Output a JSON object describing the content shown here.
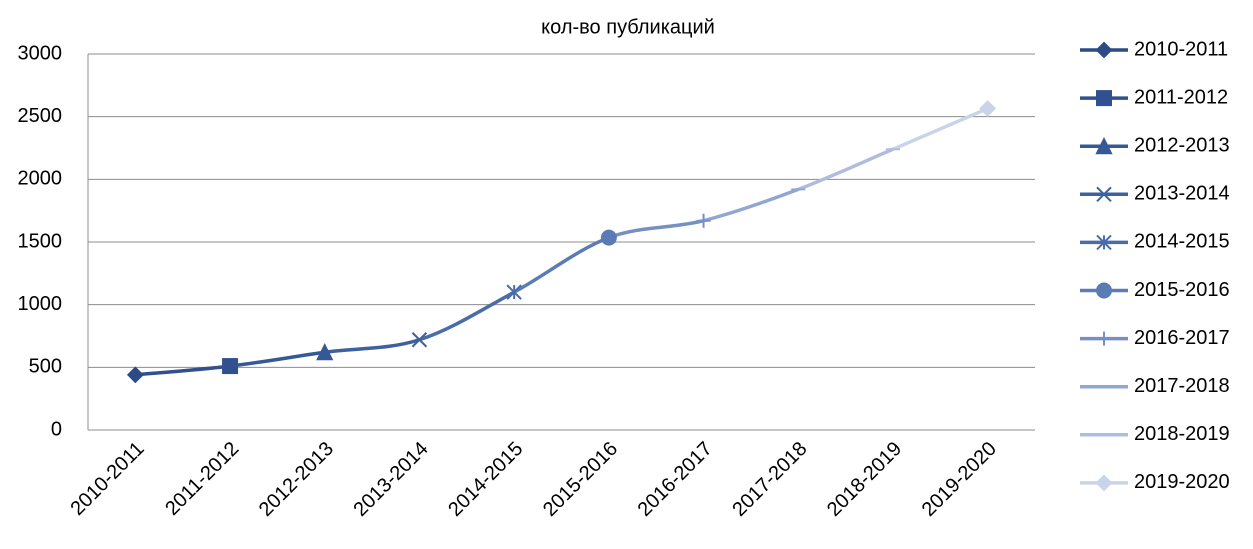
{
  "chart_data": {
    "type": "line",
    "title": "кол-во публикаций",
    "categories": [
      "2010-2011",
      "2011-2012",
      "2012-2013",
      "2013-2014",
      "2014-2015",
      "2015-2016",
      "2016-2017",
      "2017-2018",
      "2018-2019",
      "2019-2020"
    ],
    "values": [
      440,
      510,
      620,
      720,
      1100,
      1535,
      1670,
      1920,
      2240,
      2565
    ],
    "colors": [
      "#2c4a86",
      "#30508f",
      "#355896",
      "#3d619f",
      "#4a6ca8",
      "#5b7bb4",
      "#7690c2",
      "#92a7d0",
      "#aebddd",
      "#c9d4ea"
    ],
    "markers": [
      "diamond",
      "square",
      "triangle",
      "x",
      "star",
      "circle",
      "plus",
      "dash",
      "dash",
      "diamond"
    ],
    "ylim": [
      0,
      3000
    ],
    "yticks": [
      0,
      500,
      1000,
      1500,
      2000,
      2500,
      3000
    ],
    "grid": true,
    "smooth": true,
    "legend": "right"
  }
}
